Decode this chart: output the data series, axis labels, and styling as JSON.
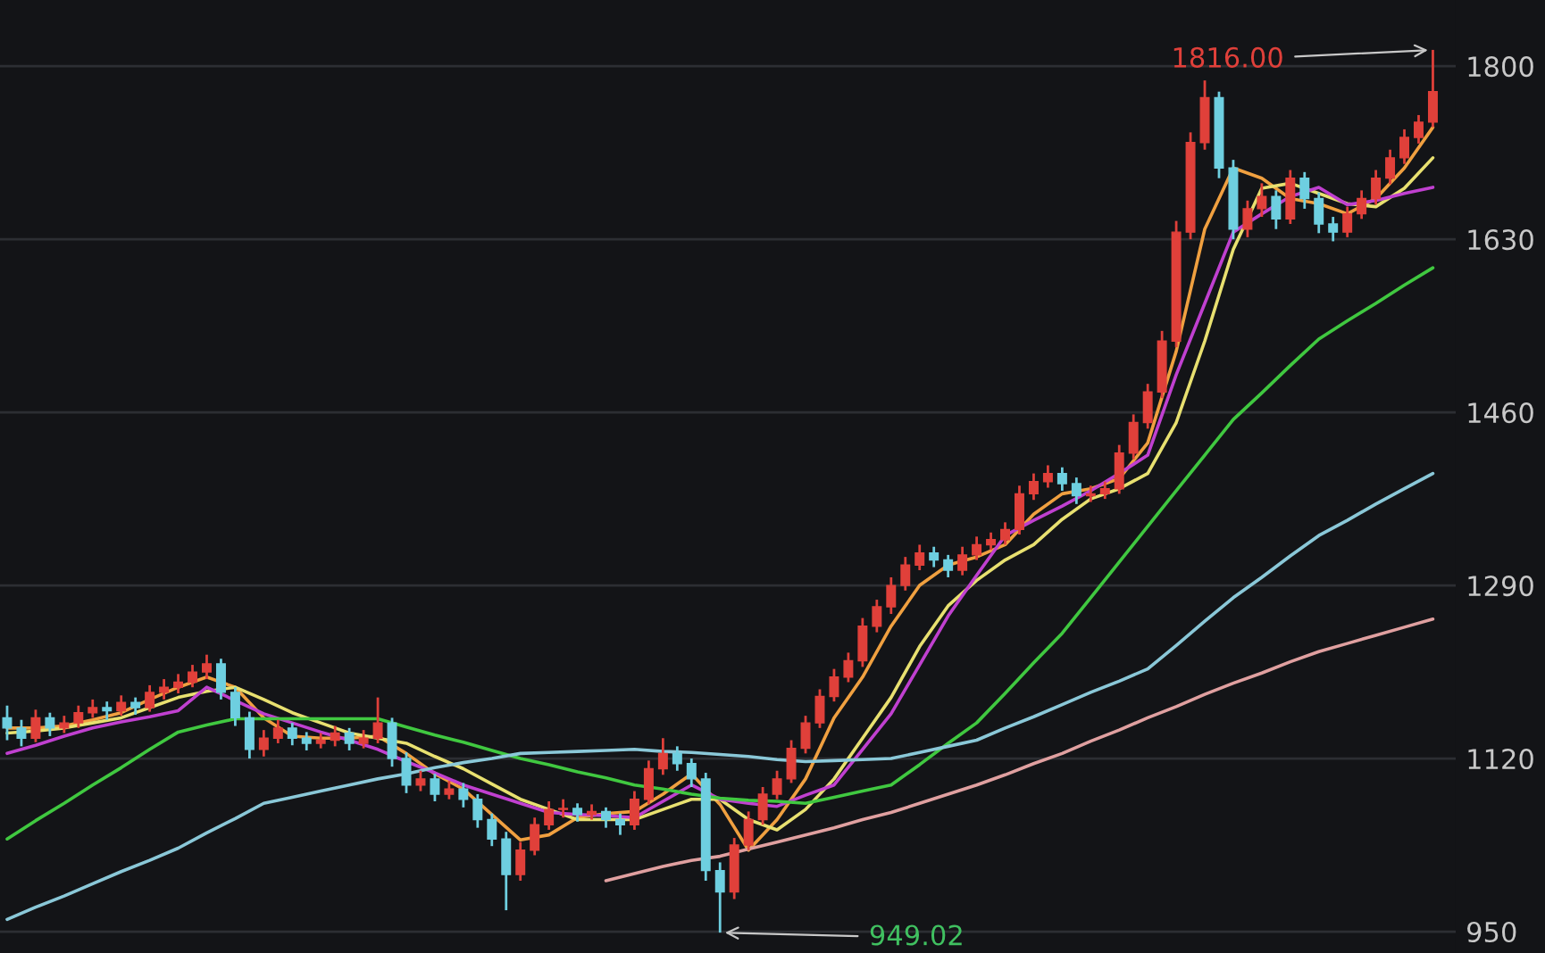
{
  "chart_data": {
    "type": "candlestick",
    "categories": [
      null,
      null,
      null,
      null,
      null,
      null,
      null,
      null,
      null,
      null,
      null,
      null,
      null,
      null,
      null,
      null,
      null,
      null,
      null,
      null,
      null,
      null,
      null,
      null,
      null,
      null,
      null,
      null,
      null,
      null,
      null,
      null,
      null,
      null,
      null,
      null,
      null,
      null,
      null,
      null,
      null,
      null,
      null,
      null,
      null,
      null,
      null,
      null,
      null,
      null,
      null,
      null,
      null,
      null,
      null,
      null,
      null,
      null,
      null,
      null,
      null,
      null,
      null,
      null,
      null,
      null,
      null,
      null,
      null,
      null,
      null,
      null,
      null,
      null,
      null,
      null,
      null,
      null,
      null,
      null,
      null,
      null,
      null,
      null,
      null,
      null,
      null,
      null,
      null,
      null,
      null,
      null,
      null,
      null,
      null,
      null,
      null,
      null,
      null,
      null,
      null
    ],
    "ohlc": [
      [
        1160,
        1172,
        1138,
        1150
      ],
      [
        1150,
        1158,
        1132,
        1140
      ],
      [
        1140,
        1168,
        1136,
        1160
      ],
      [
        1160,
        1165,
        1142,
        1150
      ],
      [
        1150,
        1162,
        1145,
        1155
      ],
      [
        1155,
        1172,
        1150,
        1165
      ],
      [
        1165,
        1178,
        1160,
        1170
      ],
      [
        1170,
        1176,
        1158,
        1167
      ],
      [
        1167,
        1182,
        1162,
        1175
      ],
      [
        1175,
        1180,
        1163,
        1170
      ],
      [
        1170,
        1192,
        1166,
        1185
      ],
      [
        1185,
        1198,
        1178,
        1190
      ],
      [
        1190,
        1203,
        1184,
        1195
      ],
      [
        1195,
        1212,
        1190,
        1205
      ],
      [
        1205,
        1222,
        1198,
        1213
      ],
      [
        1213,
        1218,
        1178,
        1185
      ],
      [
        1185,
        1190,
        1152,
        1160
      ],
      [
        1160,
        1166,
        1120,
        1129
      ],
      [
        1129,
        1148,
        1122,
        1140
      ],
      [
        1140,
        1158,
        1135,
        1150
      ],
      [
        1150,
        1155,
        1133,
        1140
      ],
      [
        1140,
        1146,
        1128,
        1135
      ],
      [
        1135,
        1145,
        1130,
        1138
      ],
      [
        1138,
        1152,
        1132,
        1145
      ],
      [
        1145,
        1150,
        1128,
        1135
      ],
      [
        1135,
        1148,
        1130,
        1140
      ],
      [
        1140,
        1180,
        1135,
        1155
      ],
      [
        1155,
        1160,
        1112,
        1120
      ],
      [
        1120,
        1126,
        1086,
        1094
      ],
      [
        1094,
        1108,
        1088,
        1100
      ],
      [
        1100,
        1105,
        1078,
        1085
      ],
      [
        1085,
        1098,
        1080,
        1090
      ],
      [
        1090,
        1096,
        1072,
        1080
      ],
      [
        1080,
        1085,
        1052,
        1060
      ],
      [
        1060,
        1066,
        1034,
        1041
      ],
      [
        1041,
        1048,
        971,
        1006
      ],
      [
        1006,
        1038,
        1000,
        1030
      ],
      [
        1030,
        1062,
        1025,
        1055
      ],
      [
        1055,
        1078,
        1050,
        1070
      ],
      [
        1070,
        1080,
        1062,
        1071
      ],
      [
        1071,
        1076,
        1058,
        1065
      ],
      [
        1065,
        1075,
        1060,
        1068
      ],
      [
        1068,
        1072,
        1052,
        1060
      ],
      [
        1060,
        1066,
        1045,
        1055
      ],
      [
        1055,
        1088,
        1050,
        1080
      ],
      [
        1080,
        1118,
        1075,
        1110
      ],
      [
        1110,
        1140,
        1104,
        1125
      ],
      [
        1125,
        1132,
        1108,
        1115
      ],
      [
        1115,
        1120,
        1092,
        1100
      ],
      [
        1100,
        1106,
        1000,
        1010
      ],
      [
        1010,
        1018,
        949.02,
        989
      ],
      [
        989,
        1042,
        982,
        1035
      ],
      [
        1035,
        1068,
        1030,
        1060
      ],
      [
        1060,
        1092,
        1055,
        1085
      ],
      [
        1085,
        1108,
        1080,
        1100
      ],
      [
        1100,
        1138,
        1096,
        1130
      ],
      [
        1130,
        1162,
        1125,
        1155
      ],
      [
        1155,
        1188,
        1150,
        1181
      ],
      [
        1181,
        1208,
        1176,
        1200
      ],
      [
        1200,
        1224,
        1195,
        1216
      ],
      [
        1216,
        1258,
        1210,
        1250
      ],
      [
        1250,
        1276,
        1244,
        1269
      ],
      [
        1269,
        1298,
        1262,
        1290
      ],
      [
        1290,
        1318,
        1285,
        1310
      ],
      [
        1310,
        1330,
        1305,
        1322
      ],
      [
        1322,
        1328,
        1308,
        1315
      ],
      [
        1315,
        1320,
        1298,
        1305
      ],
      [
        1305,
        1328,
        1300,
        1320
      ],
      [
        1320,
        1338,
        1315,
        1330
      ],
      [
        1330,
        1342,
        1325,
        1335
      ],
      [
        1335,
        1352,
        1330,
        1345
      ],
      [
        1345,
        1388,
        1340,
        1380
      ],
      [
        1380,
        1400,
        1374,
        1392
      ],
      [
        1392,
        1408,
        1386,
        1400
      ],
      [
        1400,
        1406,
        1383,
        1390
      ],
      [
        1390,
        1396,
        1370,
        1378
      ],
      [
        1378,
        1388,
        1372,
        1380
      ],
      [
        1380,
        1392,
        1375,
        1385
      ],
      [
        1385,
        1428,
        1380,
        1420
      ],
      [
        1420,
        1458,
        1414,
        1450
      ],
      [
        1450,
        1488,
        1444,
        1480
      ],
      [
        1480,
        1540,
        1474,
        1530
      ],
      [
        1530,
        1648,
        1524,
        1637
      ],
      [
        1637,
        1735,
        1630,
        1725
      ],
      [
        1725,
        1786,
        1718,
        1769
      ],
      [
        1769,
        1775,
        1690,
        1700
      ],
      [
        1700,
        1708,
        1630,
        1640
      ],
      [
        1640,
        1668,
        1632,
        1660
      ],
      [
        1660,
        1685,
        1652,
        1672
      ],
      [
        1672,
        1678,
        1640,
        1650
      ],
      [
        1650,
        1698,
        1645,
        1690
      ],
      [
        1690,
        1696,
        1660,
        1670
      ],
      [
        1670,
        1676,
        1636,
        1645
      ],
      [
        1645,
        1652,
        1628,
        1637
      ],
      [
        1637,
        1662,
        1632,
        1655
      ],
      [
        1655,
        1678,
        1650,
        1670
      ],
      [
        1670,
        1698,
        1664,
        1690
      ],
      [
        1690,
        1718,
        1684,
        1710
      ],
      [
        1710,
        1738,
        1704,
        1730
      ],
      [
        1730,
        1752,
        1724,
        1745
      ],
      [
        1745,
        1816,
        1740,
        1775
      ]
    ],
    "colors": [
      "#6ecfe0",
      "#6ecfe0",
      "#e0403a",
      "#6ecfe0",
      "#e0403a",
      "#e0403a",
      "#e0403a",
      "#6ecfe0",
      "#e0403a",
      "#6ecfe0",
      "#e0403a",
      "#e0403a",
      "#e0403a",
      "#e0403a",
      "#e0403a",
      "#6ecfe0",
      "#6ecfe0",
      "#6ecfe0",
      "#e0403a",
      "#e0403a",
      "#6ecfe0",
      "#6ecfe0",
      "#e0403a",
      "#e0403a",
      "#6ecfe0",
      "#e0403a",
      "#e0403a",
      "#6ecfe0",
      "#6ecfe0",
      "#e0403a",
      "#6ecfe0",
      "#e0403a",
      "#6ecfe0",
      "#6ecfe0",
      "#6ecfe0",
      "#6ecfe0",
      "#e0403a",
      "#e0403a",
      "#e0403a",
      "#e0403a",
      "#6ecfe0",
      "#e0403a",
      "#6ecfe0",
      "#6ecfe0",
      "#e0403a",
      "#e0403a",
      "#e0403a",
      "#6ecfe0",
      "#6ecfe0",
      "#6ecfe0",
      "#6ecfe0",
      "#e0403a",
      "#e0403a",
      "#e0403a",
      "#e0403a",
      "#e0403a",
      "#e0403a",
      "#e0403a",
      "#e0403a",
      "#e0403a",
      "#e0403a",
      "#e0403a",
      "#e0403a",
      "#e0403a",
      "#e0403a",
      "#6ecfe0",
      "#6ecfe0",
      "#e0403a",
      "#e0403a",
      "#e0403a",
      "#e0403a",
      "#e0403a",
      "#e0403a",
      "#e0403a",
      "#6ecfe0",
      "#6ecfe0",
      "#e0403a",
      "#e0403a",
      "#e0403a",
      "#e0403a",
      "#e0403a",
      "#e0403a",
      "#e0403a",
      "#e0403a",
      "#e0403a",
      "#6ecfe0",
      "#6ecfe0",
      "#e0403a",
      "#e0403a",
      "#6ecfe0",
      "#e0403a",
      "#6ecfe0",
      "#6ecfe0",
      "#6ecfe0",
      "#e0403a",
      "#e0403a",
      "#e0403a",
      "#e0403a",
      "#e0403a",
      "#e0403a",
      "#e0403a"
    ],
    "series": [
      {
        "type": "line",
        "color": "#f0a040",
        "values": [
          1150,
          null,
          1150,
          null,
          1152,
          null,
          1158,
          null,
          1165,
          null,
          1178,
          null,
          1190,
          null,
          1200,
          null,
          1190,
          null,
          1160,
          null,
          1142,
          null,
          1140,
          null,
          1140,
          null,
          1142,
          null,
          1125,
          null,
          1105,
          null,
          1090,
          null,
          1065,
          null,
          1040,
          null,
          1045,
          null,
          1062,
          null,
          1066,
          null,
          1068,
          null,
          1085,
          null,
          1105,
          null,
          1075,
          null,
          1030,
          null,
          1060,
          null,
          1100,
          null,
          1160,
          null,
          1200,
          null,
          1250,
          null,
          1290,
          null,
          1310,
          null,
          1318,
          null,
          1330,
          null,
          1360,
          null,
          1380,
          null,
          1385,
          null,
          1395,
          null,
          1430,
          null,
          1520,
          null,
          1640,
          null,
          1700,
          null,
          1690,
          null,
          1670,
          null,
          1665,
          null,
          1655,
          null,
          1670,
          null,
          1700,
          null,
          1740
        ]
      },
      {
        "type": "line",
        "color": "#e8e070",
        "values": [
          1145,
          null,
          1147,
          null,
          1150,
          null,
          1155,
          null,
          1160,
          null,
          1170,
          null,
          1180,
          null,
          1186,
          null,
          1190,
          null,
          1178,
          null,
          1165,
          null,
          1155,
          null,
          1145,
          null,
          1140,
          null,
          1135,
          null,
          1122,
          null,
          1110,
          null,
          1095,
          null,
          1080,
          null,
          1070,
          null,
          1060,
          null,
          1060,
          null,
          1060,
          null,
          1070,
          null,
          1080,
          null,
          1080,
          null,
          1060,
          null,
          1050,
          null,
          1070,
          null,
          1100,
          null,
          1140,
          null,
          1180,
          null,
          1230,
          null,
          1270,
          null,
          1295,
          null,
          1315,
          null,
          1330,
          null,
          1355,
          null,
          1375,
          null,
          1385,
          null,
          1400,
          null,
          1450,
          null,
          1530,
          null,
          1620,
          null,
          1680,
          null,
          1685,
          null,
          1675,
          null,
          1665,
          null,
          1662,
          null,
          1680,
          null,
          1710
        ]
      },
      {
        "type": "line",
        "color": "#c040d0",
        "values": [
          1125,
          null,
          1133,
          null,
          1142,
          null,
          1150,
          null,
          1156,
          null,
          1161,
          null,
          1167,
          null,
          1190,
          null,
          1177,
          null,
          1164,
          null,
          1155,
          null,
          1146,
          null,
          1138,
          null,
          1129,
          null,
          1117,
          null,
          1106,
          null,
          1094,
          null,
          1085,
          null,
          1076,
          null,
          1067,
          null,
          1065,
          null,
          1064,
          null,
          1062,
          null,
          1078,
          null,
          1094,
          null,
          1080,
          null,
          1076,
          null,
          1073,
          null,
          1084,
          null,
          1094,
          null,
          1129,
          null,
          1164,
          null,
          1212,
          null,
          1260,
          null,
          1300,
          null,
          1339,
          null,
          1354,
          null,
          1368,
          null,
          1383,
          null,
          1400,
          null,
          1418,
          null,
          1497,
          null,
          1567,
          null,
          1637,
          null,
          1655,
          null,
          1672,
          null,
          1681,
          null,
          1664,
          null,
          1668,
          null,
          1675,
          null,
          1681
        ]
      },
      {
        "type": "line",
        "color": "#40c840",
        "values": [
          1041,
          null,
          1059,
          null,
          1076,
          null,
          1094,
          null,
          1111,
          null,
          1129,
          null,
          1146,
          null,
          1153,
          null,
          1159,
          null,
          1159,
          null,
          1159,
          null,
          1159,
          null,
          1159,
          null,
          1159,
          null,
          1151,
          null,
          1143,
          null,
          1136,
          null,
          1128,
          null,
          1120,
          null,
          1114,
          null,
          1107,
          null,
          1101,
          null,
          1094,
          null,
          1090,
          null,
          1085,
          null,
          1081,
          null,
          1079,
          null,
          1078,
          null,
          1076,
          null,
          1082,
          null,
          1088,
          null,
          1094,
          null,
          1114,
          null,
          1135,
          null,
          1155,
          null,
          1184,
          null,
          1214,
          null,
          1243,
          null,
          1278,
          null,
          1313,
          null,
          1348,
          null,
          1383,
          null,
          1418,
          null,
          1453,
          null,
          1479,
          null,
          1506,
          null,
          1532,
          null,
          1550,
          null,
          1567,
          null,
          1585,
          null,
          1602
        ]
      },
      {
        "type": "line",
        "color": "#8ac8d8",
        "values": [
          962,
          null,
          974,
          null,
          985,
          null,
          997,
          null,
          1009,
          null,
          1020,
          null,
          1032,
          null,
          1047,
          null,
          1061,
          null,
          1076,
          null,
          1082,
          null,
          1088,
          null,
          1094,
          null,
          1100,
          null,
          1105,
          null,
          1111,
          null,
          1116,
          null,
          1120,
          null,
          1125,
          null,
          1126,
          null,
          1127,
          null,
          1128,
          null,
          1129,
          null,
          1127,
          null,
          1126,
          null,
          1124,
          null,
          1122,
          null,
          1119,
          null,
          1117,
          null,
          1118,
          null,
          1119,
          null,
          1120,
          null,
          1126,
          null,
          1132,
          null,
          1138,
          null,
          1150,
          null,
          1161,
          null,
          1173,
          null,
          1185,
          null,
          1196,
          null,
          1208,
          null,
          1231,
          null,
          1255,
          null,
          1278,
          null,
          1298,
          null,
          1319,
          null,
          1339,
          null,
          1354,
          null,
          1370,
          null,
          1385,
          null,
          1400
        ]
      },
      {
        "type": "line",
        "color": "#e0a0a0",
        "values": [
          null,
          null,
          null,
          null,
          null,
          null,
          null,
          null,
          null,
          null,
          null,
          null,
          null,
          null,
          null,
          null,
          null,
          null,
          null,
          null,
          null,
          null,
          null,
          null,
          null,
          null,
          null,
          null,
          null,
          null,
          null,
          null,
          null,
          null,
          null,
          null,
          null,
          null,
          null,
          null,
          null,
          null,
          1000,
          null,
          1007,
          null,
          1014,
          null,
          1020,
          null,
          1024,
          null,
          1031,
          null,
          1038,
          null,
          1045,
          null,
          1052,
          null,
          1060,
          null,
          1067,
          null,
          1076,
          null,
          1085,
          null,
          1094,
          null,
          1104,
          null,
          1115,
          null,
          1125,
          null,
          1137,
          null,
          1148,
          null,
          1160,
          null,
          1171,
          null,
          1183,
          null,
          1194,
          null,
          1204,
          null,
          1215,
          null,
          1225,
          null,
          1233,
          null,
          1241,
          null,
          1249,
          null,
          1257
        ]
      }
    ],
    "ylim": [
      929,
      1865
    ],
    "yticks": [
      950,
      1120,
      1290,
      1460,
      1630,
      1800
    ],
    "grid": "y",
    "annotations": [
      "1816.00",
      "949.02"
    ]
  }
}
